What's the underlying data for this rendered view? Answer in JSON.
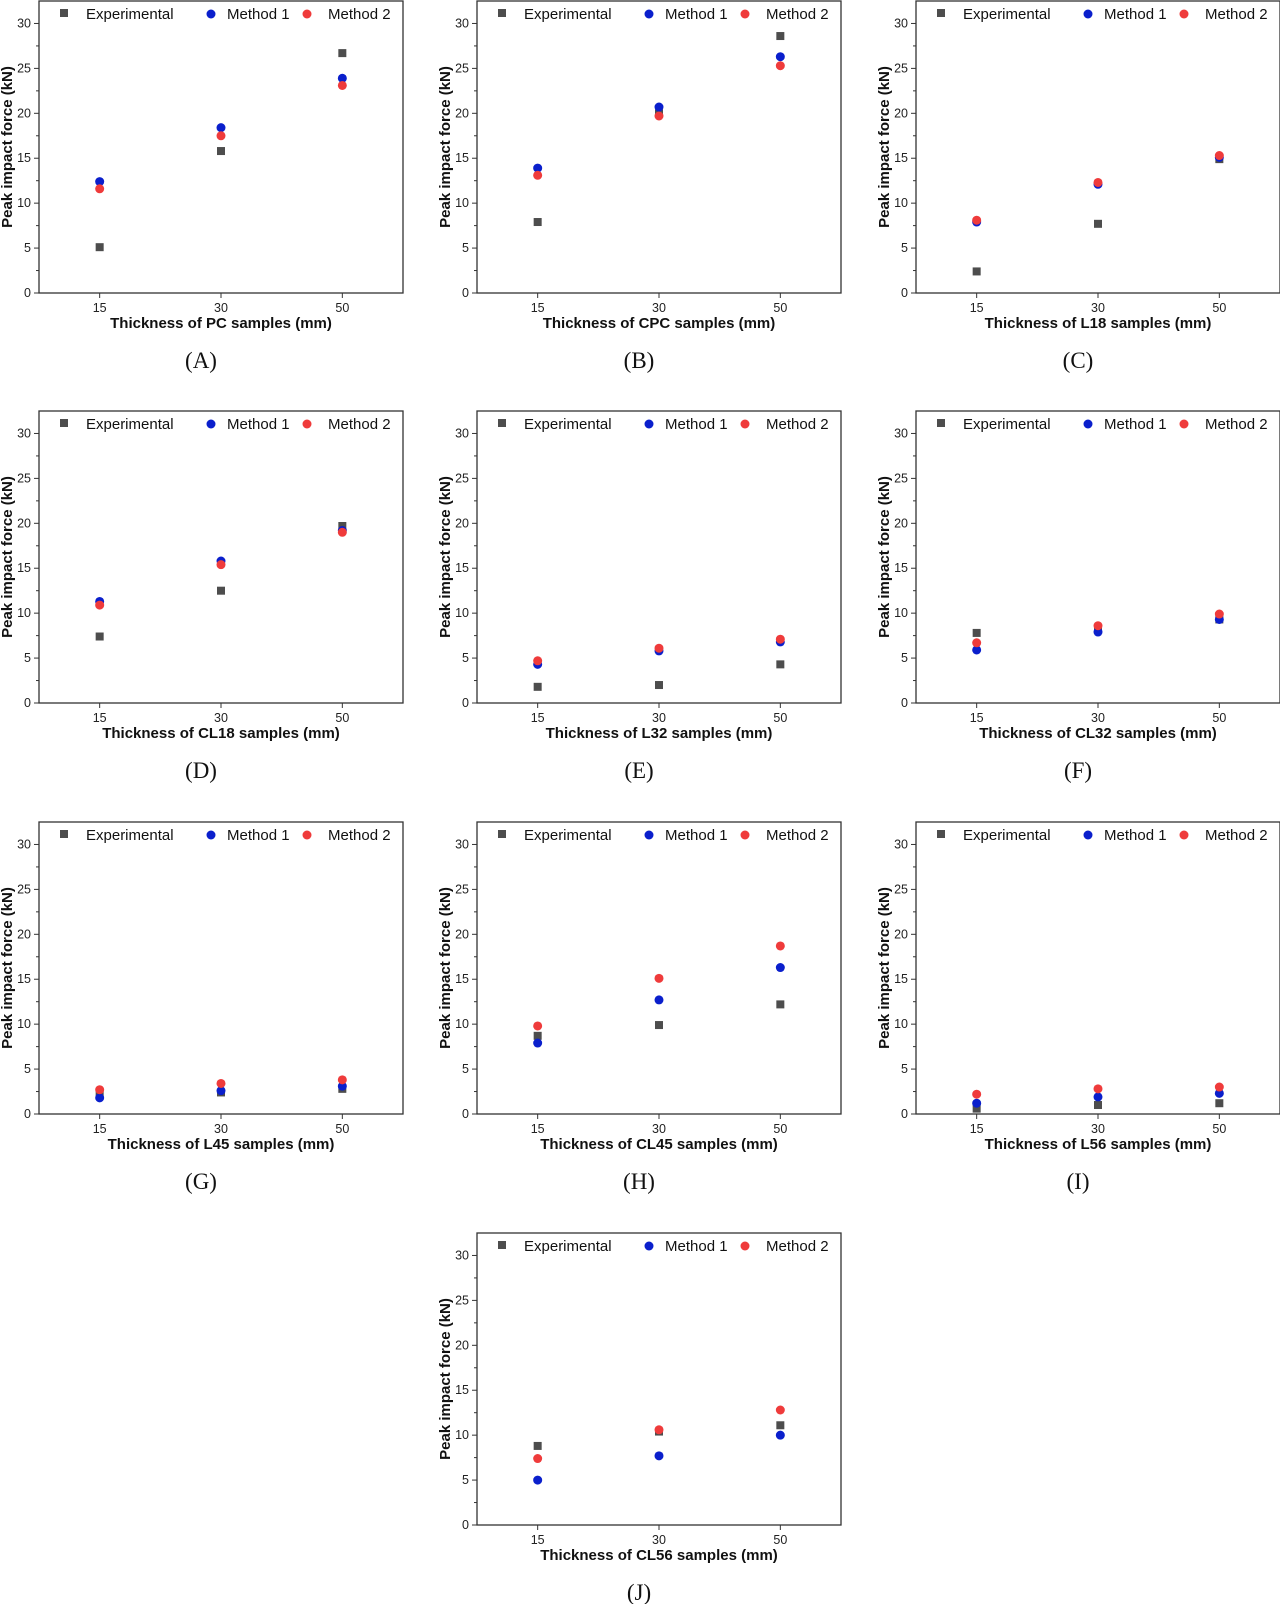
{
  "colors": {
    "Experimental": "#4d4d4d",
    "Method 1": "#0a1fcc",
    "Method 2": "#ef3b3b"
  },
  "chart_data": [
    {
      "type": "scatter",
      "panel": "(A)",
      "xlabel": "Thickness of PC samples (mm)",
      "ylabel": "Peak impact force (kN)",
      "categories": [
        "15",
        "30",
        "50"
      ],
      "yticks": [
        0,
        5,
        10,
        15,
        20,
        25,
        30
      ],
      "ylim": [
        0,
        32.5
      ],
      "legend": "top",
      "series": [
        {
          "name": "Experimental",
          "marker": "square",
          "values": [
            5.1,
            15.8,
            26.7
          ]
        },
        {
          "name": "Method 1",
          "marker": "circle",
          "values": [
            12.4,
            18.4,
            23.9
          ]
        },
        {
          "name": "Method 2",
          "marker": "circle",
          "values": [
            11.6,
            17.5,
            23.1
          ]
        }
      ]
    },
    {
      "type": "scatter",
      "panel": "(B)",
      "xlabel": "Thickness of CPC samples (mm)",
      "ylabel": "Peak impact force (kN)",
      "categories": [
        "15",
        "30",
        "50"
      ],
      "yticks": [
        0,
        5,
        10,
        15,
        20,
        25,
        30
      ],
      "ylim": [
        0,
        32.5
      ],
      "legend": "top",
      "series": [
        {
          "name": "Experimental",
          "marker": "square",
          "values": [
            7.9,
            20.0,
            28.6
          ]
        },
        {
          "name": "Method 1",
          "marker": "circle",
          "values": [
            13.9,
            20.7,
            26.3
          ]
        },
        {
          "name": "Method 2",
          "marker": "circle",
          "values": [
            13.1,
            19.7,
            25.3
          ]
        }
      ]
    },
    {
      "type": "scatter",
      "panel": "(C)",
      "xlabel": "Thickness of L18 samples (mm)",
      "ylabel": "Peak impact force (kN)",
      "categories": [
        "15",
        "30",
        "50"
      ],
      "yticks": [
        0,
        5,
        10,
        15,
        20,
        25,
        30
      ],
      "ylim": [
        0,
        32.5
      ],
      "legend": "top",
      "series": [
        {
          "name": "Experimental",
          "marker": "square",
          "values": [
            2.4,
            7.7,
            14.9
          ]
        },
        {
          "name": "Method 1",
          "marker": "circle",
          "values": [
            7.9,
            12.1,
            15.1
          ]
        },
        {
          "name": "Method 2",
          "marker": "circle",
          "values": [
            8.1,
            12.3,
            15.3
          ]
        }
      ]
    },
    {
      "type": "scatter",
      "panel": "(D)",
      "xlabel": "Thickness of CL18 samples (mm)",
      "ylabel": "Peak impact force (kN)",
      "categories": [
        "15",
        "30",
        "50"
      ],
      "yticks": [
        0,
        5,
        10,
        15,
        20,
        25,
        30
      ],
      "ylim": [
        0,
        32.5
      ],
      "legend": "top",
      "series": [
        {
          "name": "Experimental",
          "marker": "square",
          "values": [
            7.4,
            12.5,
            19.7
          ]
        },
        {
          "name": "Method 1",
          "marker": "circle",
          "values": [
            11.3,
            15.8,
            19.2
          ]
        },
        {
          "name": "Method 2",
          "marker": "circle",
          "values": [
            10.9,
            15.4,
            19.0
          ]
        }
      ]
    },
    {
      "type": "scatter",
      "panel": "(E)",
      "xlabel": "Thickness of L32 samples (mm)",
      "ylabel": "Peak impact force (kN)",
      "categories": [
        "15",
        "30",
        "50"
      ],
      "yticks": [
        0,
        5,
        10,
        15,
        20,
        25,
        30
      ],
      "ylim": [
        0,
        32.5
      ],
      "legend": "top",
      "series": [
        {
          "name": "Experimental",
          "marker": "square",
          "values": [
            1.8,
            2.0,
            4.3
          ]
        },
        {
          "name": "Method 1",
          "marker": "circle",
          "values": [
            4.3,
            5.8,
            6.8
          ]
        },
        {
          "name": "Method 2",
          "marker": "circle",
          "values": [
            4.7,
            6.1,
            7.1
          ]
        }
      ]
    },
    {
      "type": "scatter",
      "panel": "(F)",
      "xlabel": "Thickness of CL32 samples (mm)",
      "ylabel": "Peak impact force (kN)",
      "categories": [
        "15",
        "30",
        "50"
      ],
      "yticks": [
        0,
        5,
        10,
        15,
        20,
        25,
        30
      ],
      "ylim": [
        0,
        32.5
      ],
      "legend": "top",
      "series": [
        {
          "name": "Experimental",
          "marker": "square",
          "values": [
            7.8,
            8.2,
            9.3
          ]
        },
        {
          "name": "Method 1",
          "marker": "circle",
          "values": [
            5.9,
            7.9,
            9.3
          ]
        },
        {
          "name": "Method 2",
          "marker": "circle",
          "values": [
            6.7,
            8.6,
            9.9
          ]
        }
      ]
    },
    {
      "type": "scatter",
      "panel": "(G)",
      "xlabel": "Thickness of L45 samples (mm)",
      "ylabel": "Peak impact force (kN)",
      "categories": [
        "15",
        "30",
        "50"
      ],
      "yticks": [
        0,
        5,
        10,
        15,
        20,
        25,
        30
      ],
      "ylim": [
        0,
        32.5
      ],
      "legend": "top",
      "series": [
        {
          "name": "Experimental",
          "marker": "square",
          "values": [
            2.2,
            2.4,
            2.8
          ]
        },
        {
          "name": "Method 1",
          "marker": "circle",
          "values": [
            1.8,
            2.6,
            3.1
          ]
        },
        {
          "name": "Method 2",
          "marker": "circle",
          "values": [
            2.7,
            3.4,
            3.8
          ]
        }
      ]
    },
    {
      "type": "scatter",
      "panel": "(H)",
      "xlabel": "Thickness of CL45 samples (mm)",
      "ylabel": "Peak impact force (kN)",
      "categories": [
        "15",
        "30",
        "50"
      ],
      "yticks": [
        0,
        5,
        10,
        15,
        20,
        25,
        30
      ],
      "ylim": [
        0,
        32.5
      ],
      "legend": "top",
      "series": [
        {
          "name": "Experimental",
          "marker": "square",
          "values": [
            8.7,
            9.9,
            12.2
          ]
        },
        {
          "name": "Method 1",
          "marker": "circle",
          "values": [
            7.9,
            12.7,
            16.3
          ]
        },
        {
          "name": "Method 2",
          "marker": "circle",
          "values": [
            9.8,
            15.1,
            18.7
          ]
        }
      ]
    },
    {
      "type": "scatter",
      "panel": "(I)",
      "xlabel": "Thickness of L56 samples (mm)",
      "ylabel": "Peak impact force (kN)",
      "categories": [
        "15",
        "30",
        "50"
      ],
      "yticks": [
        0,
        5,
        10,
        15,
        20,
        25,
        30
      ],
      "ylim": [
        0,
        32.5
      ],
      "legend": "top",
      "series": [
        {
          "name": "Experimental",
          "marker": "square",
          "values": [
            0.6,
            1.0,
            1.2
          ]
        },
        {
          "name": "Method 1",
          "marker": "circle",
          "values": [
            1.2,
            1.9,
            2.3
          ]
        },
        {
          "name": "Method 2",
          "marker": "circle",
          "values": [
            2.2,
            2.8,
            3.0
          ]
        }
      ]
    },
    {
      "type": "scatter",
      "panel": "(J)",
      "xlabel": "Thickness of CL56 samples (mm)",
      "ylabel": "Peak impact force (kN)",
      "categories": [
        "15",
        "30",
        "50"
      ],
      "yticks": [
        0,
        5,
        10,
        15,
        20,
        25,
        30
      ],
      "ylim": [
        0,
        32.5
      ],
      "legend": "top",
      "series": [
        {
          "name": "Experimental",
          "marker": "square",
          "values": [
            8.8,
            10.4,
            11.1
          ]
        },
        {
          "name": "Method 1",
          "marker": "circle",
          "values": [
            5.0,
            7.7,
            10.0
          ]
        },
        {
          "name": "Method 2",
          "marker": "circle",
          "values": [
            7.4,
            10.6,
            12.8
          ]
        }
      ]
    }
  ]
}
